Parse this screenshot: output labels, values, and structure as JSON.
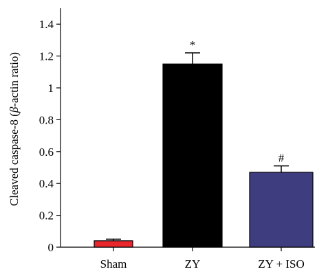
{
  "chart_data": {
    "type": "bar",
    "categories": [
      "Sham",
      "ZY",
      "ZY + ISO"
    ],
    "values": [
      0.04,
      1.15,
      0.47
    ],
    "errors": [
      0.01,
      0.07,
      0.04
    ],
    "significance": [
      "",
      "*",
      "#"
    ],
    "bar_colors": [
      "#e8262c",
      "#000000",
      "#3d3d7f"
    ],
    "ylabel_main": "Cleaved caspase-8 (",
    "ylabel_italic": "β",
    "ylabel_tail": "-actin ratio)",
    "xlabel": "",
    "ylim": [
      0,
      1.5
    ],
    "yticks": [
      0,
      0.2,
      0.4,
      0.6,
      0.8,
      1,
      1.2,
      1.4
    ],
    "ytick_labels": [
      "0",
      "0.2",
      "0.4",
      "0.6",
      "0.8",
      "1",
      "1.2",
      "1.4"
    ],
    "grid": false,
    "legend": "none"
  }
}
